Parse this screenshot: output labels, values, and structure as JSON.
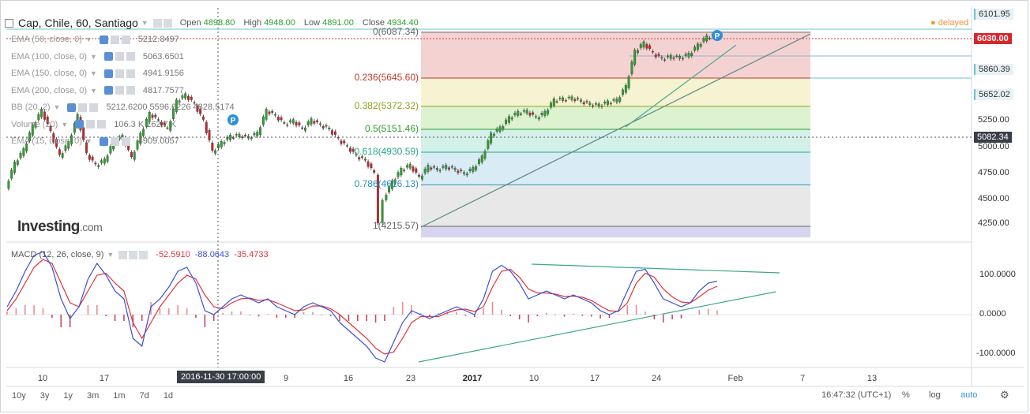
{
  "header": {
    "title": "Cap, Chile, 60, Santiago",
    "open_label": "Open",
    "open": "4898.80",
    "high_label": "High",
    "high": "4948.00",
    "low_label": "Low",
    "low": "4891.00",
    "close_label": "Close",
    "close": "4934.40",
    "status": "delayed"
  },
  "indicators": [
    {
      "label": "EMA (50, close, 0)",
      "value": "5212.8497"
    },
    {
      "label": "EMA (100, close, 0)",
      "value": "5063.6501"
    },
    {
      "label": "EMA (150, close, 0)",
      "value": "4941.9156"
    },
    {
      "label": "EMA (200, close, 0)",
      "value": "4817.7577"
    },
    {
      "label": "BB (20, 2)",
      "value": "5212.6200  5596.6226  4828.5174"
    },
    {
      "label": "Volume (20)",
      "value": "106.3 K  162.7 K"
    },
    {
      "label": "EMA (15, close, 0)",
      "value": "4909.0057"
    }
  ],
  "logo": {
    "main": "Investing",
    "suffix": ".com"
  },
  "macd": {
    "label": "MACD (12, 26, close, 9)",
    "v1": "-52.5910",
    "v2": "-88.0643",
    "v3": "-35.4733"
  },
  "fib_levels": [
    {
      "label": "0(6087.34)",
      "price": 6087.34,
      "color": "#666666"
    },
    {
      "label": "0.236(5645.60)",
      "price": 5645.6,
      "color": "#c0392b"
    },
    {
      "label": "0.382(5372.32)",
      "price": 5372.32,
      "color": "#8aa51f"
    },
    {
      "label": "0.5(5151.46)",
      "price": 5151.46,
      "color": "#2e9f2e"
    },
    {
      "label": "0.618(4930.59)",
      "price": 4930.59,
      "color": "#28a88a"
    },
    {
      "label": "0.786(4616.13)",
      "price": 4616.13,
      "color": "#2a8fc1"
    },
    {
      "label": "1(4215.57)",
      "price": 4215.57,
      "color": "#666666"
    }
  ],
  "price_axis": {
    "ticks": [
      "6101.95",
      "6030.00",
      "5860.39",
      "5652.02",
      "5250.00",
      "5082.34",
      "5000.00",
      "4750.00",
      "4500.00",
      "4250.00"
    ],
    "highlight_red": "6030.00",
    "highlight_dark": "5082.34",
    "highlight_blue": [
      "6101.95",
      "5860.39",
      "5652.02"
    ]
  },
  "macd_axis": {
    "ticks": [
      "100.0000",
      "0.0000",
      "-100.0000"
    ]
  },
  "xaxis": {
    "labels": [
      "10",
      "17",
      "9",
      "16",
      "23",
      "2017",
      "10",
      "17",
      "24",
      "Feb",
      "7",
      "13"
    ],
    "crosshair": "2016-11-30 17:00:00"
  },
  "ranges": [
    "10y",
    "3y",
    "1y",
    "3m",
    "1m",
    "7d",
    "1d"
  ],
  "footer": {
    "time": "16:47:32 (UTC+1)",
    "percent": "%",
    "log": "log",
    "auto": "auto"
  },
  "chart_data": {
    "type": "candlestick",
    "title": "Cap, Chile, 60, Santiago",
    "ylim": [
      4150,
      6180
    ],
    "fib_retracement": {
      "high": 6087.34,
      "low": 4215.57
    },
    "price_trace": [
      [
        0,
        4590
      ],
      [
        2,
        4820
      ],
      [
        4,
        4950
      ],
      [
        6,
        5180
      ],
      [
        8,
        5330
      ],
      [
        10,
        5120
      ],
      [
        12,
        4890
      ],
      [
        14,
        5020
      ],
      [
        16,
        5280
      ],
      [
        18,
        4910
      ],
      [
        20,
        4800
      ],
      [
        22,
        4850
      ],
      [
        24,
        5030
      ],
      [
        26,
        5080
      ],
      [
        28,
        4870
      ],
      [
        30,
        5100
      ],
      [
        32,
        5300
      ],
      [
        34,
        5230
      ],
      [
        36,
        5150
      ],
      [
        38,
        5420
      ],
      [
        40,
        5480
      ],
      [
        42,
        5390
      ],
      [
        44,
        5230
      ],
      [
        46,
        4930
      ],
      [
        48,
        5020
      ],
      [
        50,
        5080
      ],
      [
        52,
        5090
      ],
      [
        54,
        5070
      ],
      [
        56,
        5110
      ],
      [
        58,
        5330
      ],
      [
        60,
        5280
      ],
      [
        62,
        5200
      ],
      [
        64,
        5230
      ],
      [
        66,
        5150
      ],
      [
        68,
        5240
      ],
      [
        70,
        5190
      ],
      [
        72,
        5150
      ],
      [
        74,
        5050
      ],
      [
        76,
        4980
      ],
      [
        78,
        4890
      ],
      [
        80,
        4850
      ],
      [
        82,
        4720
      ],
      [
        83,
        4260
      ],
      [
        84,
        4480
      ],
      [
        86,
        4640
      ],
      [
        88,
        4760
      ],
      [
        90,
        4800
      ],
      [
        92,
        4680
      ],
      [
        94,
        4790
      ],
      [
        96,
        4760
      ],
      [
        98,
        4790
      ],
      [
        100,
        4760
      ],
      [
        102,
        4720
      ],
      [
        104,
        4770
      ],
      [
        106,
        4880
      ],
      [
        108,
        5100
      ],
      [
        110,
        5160
      ],
      [
        112,
        5260
      ],
      [
        114,
        5310
      ],
      [
        116,
        5320
      ],
      [
        118,
        5260
      ],
      [
        120,
        5310
      ],
      [
        122,
        5430
      ],
      [
        124,
        5440
      ],
      [
        126,
        5450
      ],
      [
        128,
        5420
      ],
      [
        130,
        5390
      ],
      [
        132,
        5380
      ],
      [
        134,
        5410
      ],
      [
        136,
        5430
      ],
      [
        138,
        5560
      ],
      [
        140,
        5900
      ],
      [
        142,
        5980
      ],
      [
        144,
        5880
      ],
      [
        146,
        5830
      ],
      [
        148,
        5850
      ],
      [
        150,
        5840
      ],
      [
        152,
        5870
      ],
      [
        154,
        5960
      ],
      [
        156,
        6040
      ],
      [
        158,
        6060
      ]
    ],
    "macd_line": [
      [
        0,
        20
      ],
      [
        2,
        60
      ],
      [
        4,
        110
      ],
      [
        6,
        150
      ],
      [
        8,
        160
      ],
      [
        10,
        120
      ],
      [
        12,
        40
      ],
      [
        14,
        -10
      ],
      [
        16,
        20
      ],
      [
        18,
        90
      ],
      [
        20,
        130
      ],
      [
        22,
        100
      ],
      [
        24,
        60
      ],
      [
        26,
        40
      ],
      [
        28,
        -60
      ],
      [
        30,
        -80
      ],
      [
        32,
        20
      ],
      [
        34,
        40
      ],
      [
        36,
        70
      ],
      [
        38,
        110
      ],
      [
        40,
        120
      ],
      [
        42,
        80
      ],
      [
        44,
        10
      ],
      [
        46,
        0
      ],
      [
        48,
        20
      ],
      [
        50,
        40
      ],
      [
        52,
        50
      ],
      [
        54,
        40
      ],
      [
        56,
        30
      ],
      [
        58,
        40
      ],
      [
        60,
        20
      ],
      [
        62,
        10
      ],
      [
        64,
        0
      ],
      [
        66,
        20
      ],
      [
        68,
        30
      ],
      [
        70,
        20
      ],
      [
        72,
        10
      ],
      [
        74,
        -20
      ],
      [
        76,
        -40
      ],
      [
        78,
        -60
      ],
      [
        80,
        -80
      ],
      [
        82,
        -110
      ],
      [
        84,
        -120
      ],
      [
        86,
        -70
      ],
      [
        88,
        -20
      ],
      [
        90,
        10
      ],
      [
        92,
        0
      ],
      [
        94,
        -10
      ],
      [
        96,
        0
      ],
      [
        98,
        10
      ],
      [
        100,
        20
      ],
      [
        102,
        10
      ],
      [
        104,
        0
      ],
      [
        106,
        40
      ],
      [
        108,
        110
      ],
      [
        110,
        125
      ],
      [
        112,
        110
      ],
      [
        114,
        80
      ],
      [
        116,
        40
      ],
      [
        118,
        50
      ],
      [
        120,
        60
      ],
      [
        122,
        50
      ],
      [
        124,
        40
      ],
      [
        126,
        50
      ],
      [
        128,
        40
      ],
      [
        130,
        30
      ],
      [
        132,
        10
      ],
      [
        134,
        0
      ],
      [
        136,
        10
      ],
      [
        138,
        60
      ],
      [
        140,
        110
      ],
      [
        142,
        115
      ],
      [
        144,
        80
      ],
      [
        146,
        40
      ],
      [
        148,
        30
      ],
      [
        150,
        20
      ],
      [
        152,
        30
      ],
      [
        154,
        60
      ],
      [
        156,
        80
      ],
      [
        158,
        85
      ]
    ],
    "signal_line": [
      [
        0,
        10
      ],
      [
        2,
        40
      ],
      [
        4,
        80
      ],
      [
        6,
        120
      ],
      [
        8,
        140
      ],
      [
        10,
        130
      ],
      [
        12,
        80
      ],
      [
        14,
        30
      ],
      [
        16,
        20
      ],
      [
        18,
        60
      ],
      [
        20,
        100
      ],
      [
        22,
        105
      ],
      [
        24,
        80
      ],
      [
        26,
        60
      ],
      [
        28,
        -20
      ],
      [
        30,
        -60
      ],
      [
        32,
        -20
      ],
      [
        34,
        20
      ],
      [
        36,
        50
      ],
      [
        38,
        80
      ],
      [
        40,
        100
      ],
      [
        42,
        90
      ],
      [
        44,
        50
      ],
      [
        46,
        20
      ],
      [
        48,
        15
      ],
      [
        50,
        30
      ],
      [
        52,
        40
      ],
      [
        54,
        42
      ],
      [
        56,
        36
      ],
      [
        58,
        38
      ],
      [
        60,
        30
      ],
      [
        62,
        20
      ],
      [
        64,
        10
      ],
      [
        66,
        12
      ],
      [
        68,
        22
      ],
      [
        70,
        22
      ],
      [
        72,
        15
      ],
      [
        74,
        0
      ],
      [
        76,
        -20
      ],
      [
        78,
        -40
      ],
      [
        80,
        -60
      ],
      [
        82,
        -85
      ],
      [
        84,
        -100
      ],
      [
        86,
        -95
      ],
      [
        88,
        -60
      ],
      [
        90,
        -20
      ],
      [
        92,
        -5
      ],
      [
        94,
        -5
      ],
      [
        96,
        -5
      ],
      [
        98,
        5
      ],
      [
        100,
        12
      ],
      [
        102,
        14
      ],
      [
        104,
        8
      ],
      [
        106,
        20
      ],
      [
        108,
        70
      ],
      [
        110,
        110
      ],
      [
        112,
        115
      ],
      [
        114,
        95
      ],
      [
        116,
        65
      ],
      [
        118,
        55
      ],
      [
        120,
        55
      ],
      [
        122,
        52
      ],
      [
        124,
        46
      ],
      [
        126,
        47
      ],
      [
        128,
        44
      ],
      [
        130,
        36
      ],
      [
        132,
        22
      ],
      [
        134,
        10
      ],
      [
        136,
        8
      ],
      [
        138,
        30
      ],
      [
        140,
        80
      ],
      [
        142,
        105
      ],
      [
        144,
        95
      ],
      [
        146,
        65
      ],
      [
        148,
        45
      ],
      [
        150,
        32
      ],
      [
        152,
        30
      ],
      [
        154,
        45
      ],
      [
        156,
        62
      ],
      [
        158,
        72
      ]
    ],
    "series": [
      {
        "name": "MACD",
        "color": "#3a4fd6"
      },
      {
        "name": "Signal",
        "color": "#e0323c"
      }
    ],
    "colors": {
      "up": "#2e9f2e",
      "down": "#c0272d"
    },
    "macd_ylim": [
      -130,
      170
    ]
  }
}
